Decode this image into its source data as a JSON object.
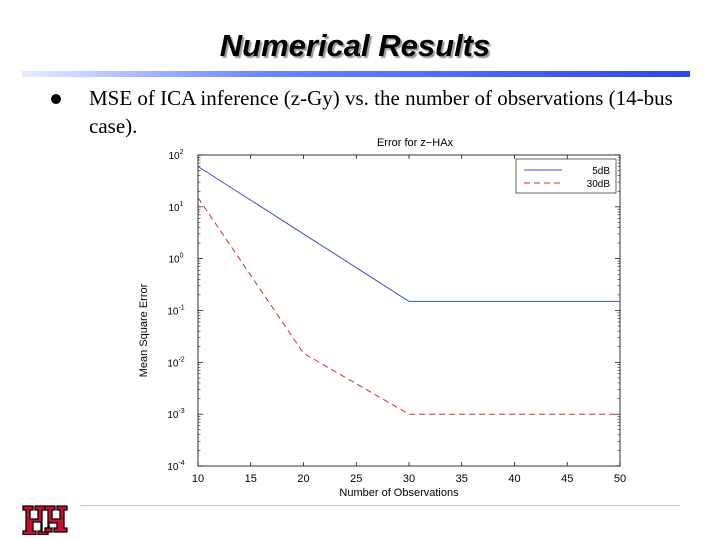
{
  "slide": {
    "title": "Numerical Results",
    "bullet": "MSE of ICA inference (z-Gy) vs. the number of observations (14-bus case)."
  },
  "colors": {
    "title_rule": "#2a47f0",
    "series_5dB": "#3a4fd6",
    "series_30dB": "#d42a2a",
    "logo": "#c8102e"
  },
  "logo": {
    "icon": "uh-interlocking-logo"
  },
  "chart_data": {
    "type": "line",
    "title": "Error for z−HAx",
    "xlabel": "Number of Observations",
    "ylabel": "Mean Square Error",
    "x": [
      10,
      20,
      30,
      50
    ],
    "xlim": [
      10,
      50
    ],
    "xticks": [
      10,
      15,
      20,
      25,
      30,
      35,
      40,
      45,
      50
    ],
    "ylim": [
      0.0001,
      100
    ],
    "yscale": "log",
    "yticks": [
      {
        "value": 100,
        "label": "10^2"
      },
      {
        "value": 10,
        "label": "10^1"
      },
      {
        "value": 1,
        "label": "10^0"
      },
      {
        "value": 0.1,
        "label": "10^-1"
      },
      {
        "value": 0.01,
        "label": "10^-2"
      },
      {
        "value": 0.001,
        "label": "10^-3"
      },
      {
        "value": 0.0001,
        "label": "10^-4"
      }
    ],
    "series": [
      {
        "name": "5dB",
        "style": "solid",
        "values": [
          60,
          3,
          0.15,
          0.15
        ]
      },
      {
        "name": "30dB",
        "style": "dashed",
        "values": [
          15,
          0.015,
          0.001,
          0.001
        ]
      }
    ],
    "legend": "top-right",
    "grid": false
  }
}
